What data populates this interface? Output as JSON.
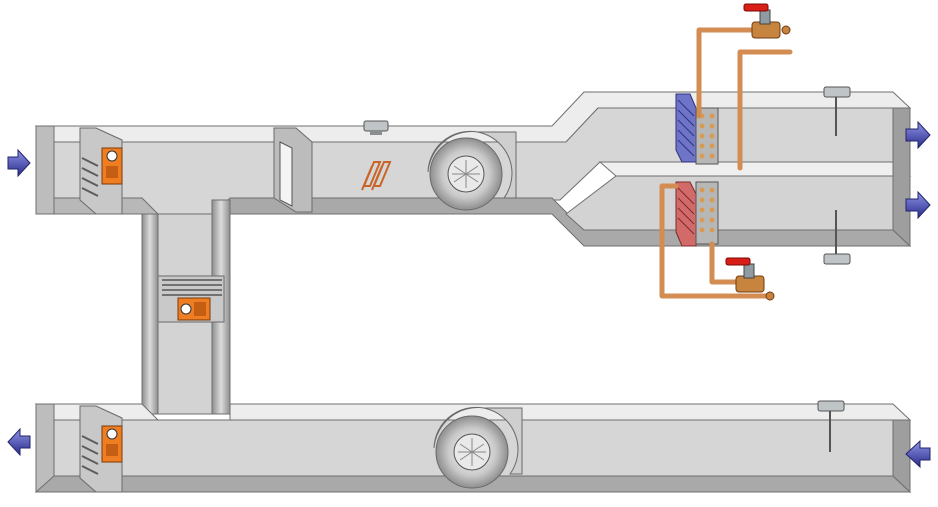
{
  "diagram": {
    "kind": "air-handling-unit-schematic",
    "colors": {
      "duct_face": "#d8d8d8",
      "duct_top": "#eeeeee",
      "duct_edge": "#6f6f6f",
      "arrow_fill": "#3b3fa8",
      "pipe": "#d38d52",
      "actuator": "#ee7a22",
      "valve_handle": "#d81e16",
      "cooling_coil": "#6e74c8",
      "heating_coil": "#d26a6a"
    },
    "components": {
      "outdoor_air_inlet_arrow": "arrow-right-icon",
      "exhaust_air_outlet_arrow": "arrow-left-icon",
      "return_air_inlet_arrow": "arrow-left-icon",
      "supply_air_outlet_arrows": [
        "arrow-right-icon",
        "arrow-right-icon"
      ],
      "outdoor_air_damper": "damper-icon",
      "exhaust_air_damper": "damper-icon",
      "mixing_damper": "damper-icon",
      "filter": "filter-icon",
      "heater": "heating-element-icon",
      "supply_fan": "fan-icon",
      "return_fan": "fan-icon",
      "cooling_coil": "coil-icon",
      "heating_coil": "coil-icon",
      "cooling_valve": "valve-icon",
      "heating_valve": "valve-icon",
      "sensors": [
        "sensor-icon",
        "sensor-icon",
        "sensor-icon",
        "sensor-icon"
      ]
    }
  }
}
